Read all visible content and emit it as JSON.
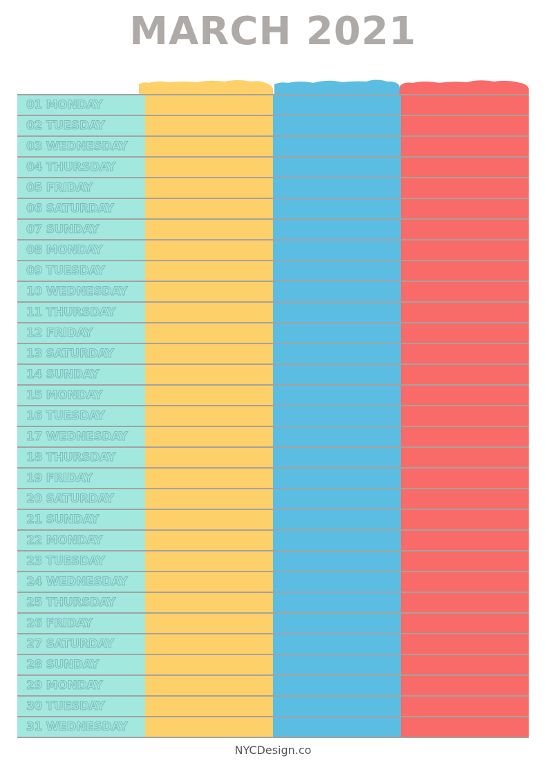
{
  "title": "MARCH 2021",
  "footer": "NYCDesign.co",
  "colors": {
    "days": "#a2e8de",
    "yellow": "#fdd06a",
    "blue": "#5bbde2",
    "red": "#f96b68",
    "title": "#aeaaa7",
    "lines": "#a4a2a0"
  },
  "days": [
    "01 MONDAY",
    "02 TUESDAY",
    "03 WEDNESDAY",
    "04 THURSDAY",
    "05 FRIDAY",
    "06 SATURDAY",
    "07 SUNDAY",
    "08 MONDAY",
    "09 TUESDAY",
    "10 WEDNESDAY",
    "11 THURSDAY",
    "12 FRIDAY",
    "13 SATURDAY",
    "14 SUNDAY",
    "15 MONDAY",
    "16 TUESDAY",
    "17 WEDNESDAY",
    "18 THURSDAY",
    "19 FRIDAY",
    "20 SATURDAY",
    "21 SUNDAY",
    "22 MONDAY",
    "23 TUESDAY",
    "24 WEDNESDAY",
    "25 THURSDAY",
    "26 FRIDAY",
    "27 SATURDAY",
    "28 SUNDAY",
    "29 MONDAY",
    "30 TUESDAY",
    "31 WEDNESDAY"
  ]
}
